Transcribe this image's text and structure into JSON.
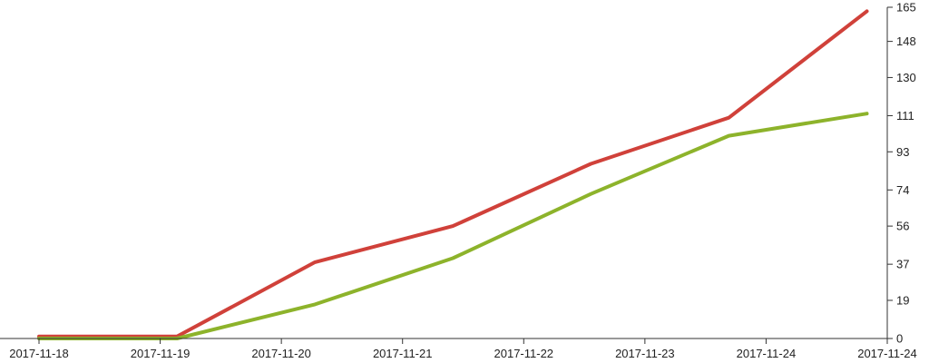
{
  "chart_data": {
    "type": "line",
    "title": "",
    "xlabel": "",
    "ylabel": "",
    "x": [
      "2017-11-18 00:00",
      "2017-11-19 03:00",
      "2017-11-20 06:00",
      "2017-11-21 09:00",
      "2017-11-22 12:00",
      "2017-11-23 15:00",
      "2017-11-24 18:00"
    ],
    "x_range": [
      "2017-11-18 00:00",
      "2017-11-24 22:00"
    ],
    "x_tick_labels": [
      "2017-11-18",
      "2017-11-19",
      "2017-11-20",
      "2017-11-21",
      "2017-11-22",
      "2017-11-23",
      "2017-11-24",
      "2017-11-24"
    ],
    "y_ticks": [
      0,
      19,
      37,
      56,
      74,
      93,
      111,
      130,
      148,
      165
    ],
    "ylim": [
      0,
      165
    ],
    "y_axis_side": "right",
    "grid": false,
    "legend": "none",
    "series": [
      {
        "color": "#d0413a",
        "values": [
          1,
          1,
          38,
          56,
          87,
          110,
          163
        ]
      },
      {
        "color": "#8db32b",
        "values": [
          0,
          0,
          17,
          40,
          72,
          101,
          112
        ]
      }
    ]
  }
}
